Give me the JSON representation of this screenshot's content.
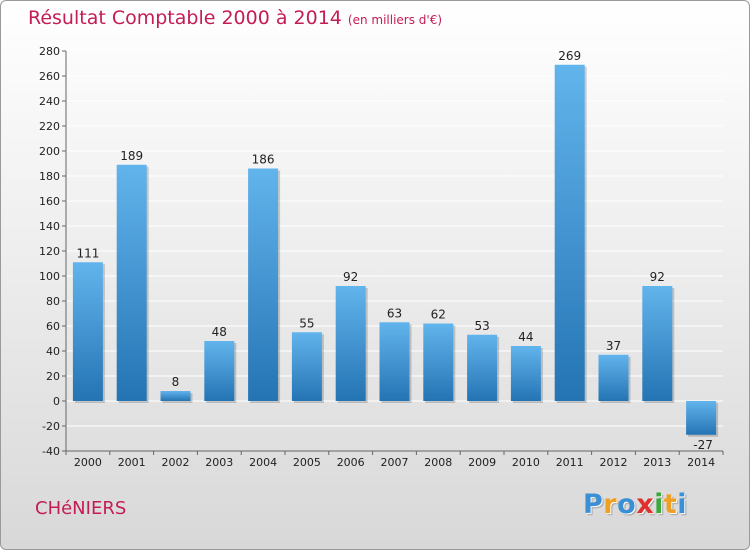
{
  "header": {
    "title": "Résultat Comptable 2000 à 2014",
    "subtitle": "(en milliers d'€)"
  },
  "footer": {
    "commune": "CHéNIERS",
    "logo_letters": [
      {
        "char": "P",
        "color": "#3b8fd4"
      },
      {
        "char": "r",
        "color": "#f0a020"
      },
      {
        "char": "o",
        "color": "#3b8fd4"
      },
      {
        "char": "x",
        "color": "#e0302c"
      },
      {
        "char": "i",
        "color": "#3aa83a"
      },
      {
        "char": "t",
        "color": "#f0a020"
      },
      {
        "char": "i",
        "color": "#3b8fd4"
      }
    ]
  },
  "colors": {
    "bar_light": "#62b4ec",
    "bar_dark": "#2474b4",
    "grid": "#ffffff",
    "axis": "#666666"
  },
  "chart_data": {
    "type": "bar",
    "title": "Résultat Comptable 2000 à 2014",
    "subtitle": "(en milliers d'€)",
    "categories": [
      "2000",
      "2001",
      "2002",
      "2003",
      "2004",
      "2005",
      "2006",
      "2007",
      "2008",
      "2009",
      "2010",
      "2011",
      "2012",
      "2013",
      "2014"
    ],
    "values": [
      111,
      189,
      8,
      48,
      186,
      55,
      92,
      63,
      62,
      53,
      44,
      269,
      37,
      92,
      -27
    ],
    "ylim": [
      -40,
      280
    ],
    "ytick_step": 20,
    "grid": true,
    "legend": "none"
  }
}
